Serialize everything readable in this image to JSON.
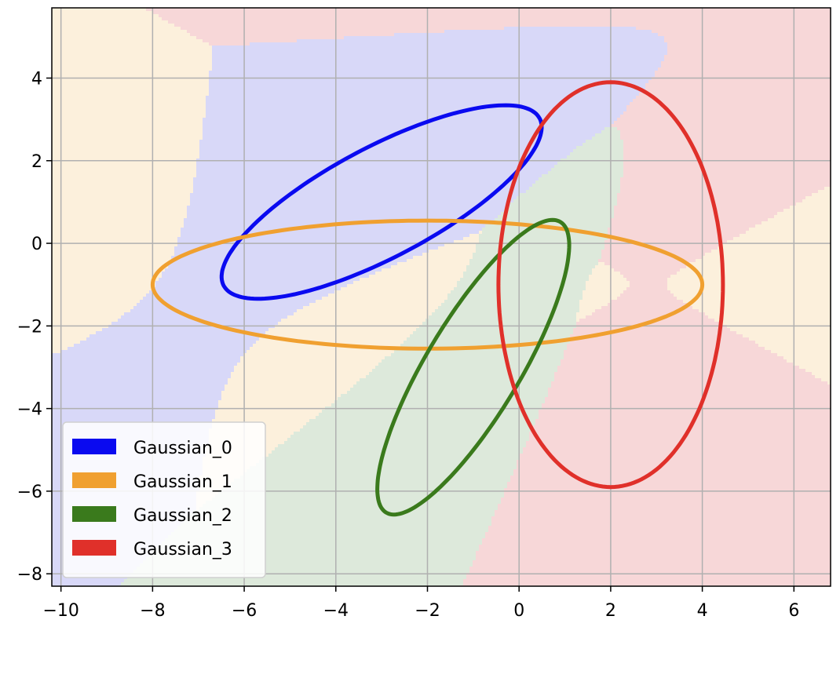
{
  "chart_data": {
    "type": "contour-ellipse",
    "title": "",
    "xlabel": "",
    "ylabel": "",
    "xlim": [
      -10.2,
      6.8
    ],
    "ylim": [
      -8.3,
      5.7
    ],
    "xticks": [
      -10,
      -8,
      -6,
      -4,
      -2,
      0,
      2,
      4,
      6
    ],
    "yticks": [
      -8,
      -6,
      -4,
      -2,
      0,
      2,
      4
    ],
    "grid": true,
    "legend_position": "lower-left",
    "series": [
      {
        "name": "Gaussian_0",
        "color": "#0a0af0",
        "region_color": "#d8d8f8",
        "center": [
          -3.0,
          1.0
        ],
        "semi_major": 4.0,
        "semi_minor": 1.3,
        "angle_deg": 31
      },
      {
        "name": "Gaussian_1",
        "color": "#f0a030",
        "region_color": "#fcf0dc",
        "center": [
          -2.0,
          -1.0
        ],
        "semi_major": 6.0,
        "semi_minor": 1.55,
        "angle_deg": 0
      },
      {
        "name": "Gaussian_2",
        "color": "#3a7a1c",
        "region_color": "#dde9db",
        "center": [
          -1.0,
          -3.0
        ],
        "semi_major": 4.0,
        "semi_minor": 1.05,
        "angle_deg": 62
      },
      {
        "name": "Gaussian_3",
        "color": "#e0302a",
        "region_color": "#f7d7d8",
        "center": [
          2.0,
          -1.0
        ],
        "semi_major": 4.9,
        "semi_minor": 2.45,
        "angle_deg": 90
      }
    ]
  }
}
